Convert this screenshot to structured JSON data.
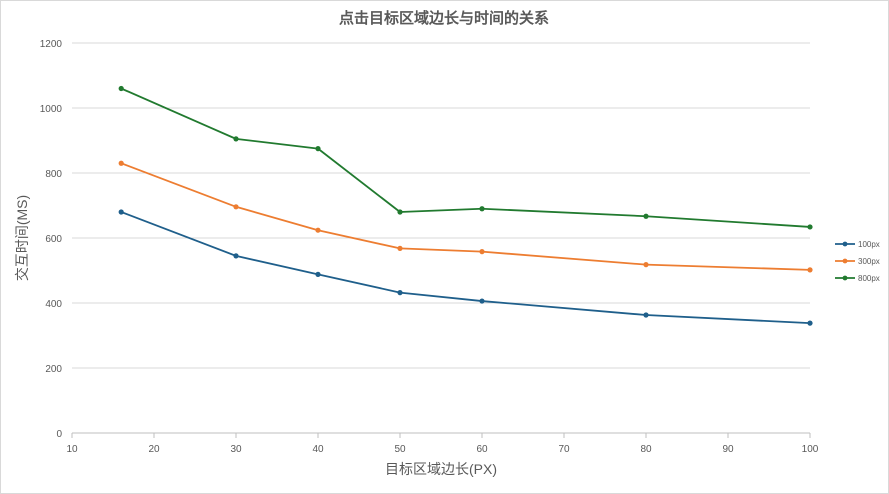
{
  "chart_data": {
    "type": "line",
    "title": "点击目标区域边长与时间的关系",
    "xlabel": "目标区域边长(PX)",
    "ylabel": "交互时间(MS)",
    "xlim": [
      10,
      100
    ],
    "ylim": [
      0,
      1200
    ],
    "xticks": [
      10,
      20,
      30,
      40,
      50,
      60,
      70,
      80,
      90,
      100
    ],
    "yticks": [
      0,
      200,
      400,
      600,
      800,
      1000,
      1200
    ],
    "grid": "horizontal",
    "legend_position": "right",
    "x": [
      16,
      30,
      40,
      50,
      60,
      80,
      100
    ],
    "series": [
      {
        "name": "100px",
        "color": "#1f5f8b",
        "values": [
          680,
          545,
          488,
          432,
          406,
          363,
          338
        ]
      },
      {
        "name": "300px",
        "color": "#ed7d31",
        "values": [
          830,
          696,
          624,
          568,
          558,
          518,
          502
        ]
      },
      {
        "name": "800px",
        "color": "#217a2f",
        "values": [
          1060,
          905,
          875,
          680,
          690,
          667,
          634
        ]
      }
    ]
  }
}
